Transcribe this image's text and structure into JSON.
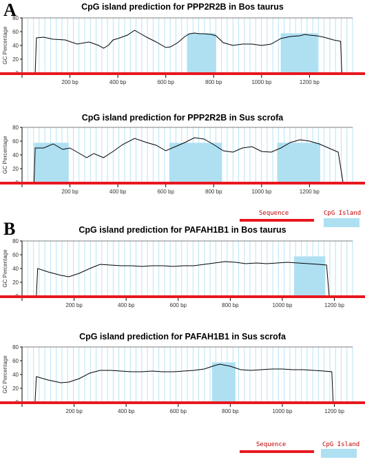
{
  "panels": [
    {
      "letter": "A"
    },
    {
      "letter": "B"
    }
  ],
  "legend": {
    "sequence_label": "Sequence",
    "island_label": "CpG Island",
    "sequence_color": "#e8171e",
    "island_color": "#aee0f2"
  },
  "colors": {
    "grid": "#b9e3f3",
    "trace": "#000000",
    "baseline": "#e8171e",
    "island": "#aee0f2",
    "axis_text": "#333333"
  },
  "chart_data": [
    {
      "type": "line",
      "title": "CpG island prediction for PPP2R2B in Bos taurus",
      "ylabel": "GC Percentage",
      "xlim": [
        0,
        1380
      ],
      "ylim": [
        0,
        80
      ],
      "yticks": [
        0,
        20,
        40,
        60,
        80
      ],
      "xticks": [
        200,
        400,
        600,
        800,
        1000,
        1200
      ],
      "xtick_labels": [
        "200  bp",
        "400  bp",
        "600  bp",
        "800  bp",
        "1000  bp",
        "1200  bp"
      ],
      "seq_start": 55,
      "seq_end": 1335,
      "islands": [
        [
          690,
          810
        ],
        [
          1080,
          1235
        ]
      ],
      "x": [
        55,
        60,
        90,
        130,
        180,
        230,
        280,
        320,
        340,
        360,
        380,
        400,
        440,
        470,
        490,
        520,
        560,
        600,
        620,
        650,
        680,
        700,
        720,
        740,
        760,
        790,
        810,
        840,
        880,
        920,
        960,
        1000,
        1040,
        1080,
        1120,
        1160,
        1180,
        1200,
        1230,
        1260,
        1300,
        1330,
        1335
      ],
      "y": [
        0,
        51,
        52,
        49,
        48,
        42,
        45,
        40,
        36,
        40,
        48,
        50,
        55,
        62,
        58,
        52,
        45,
        37,
        38,
        44,
        53,
        57,
        58,
        57,
        57,
        56,
        54,
        44,
        40,
        42,
        42,
        40,
        42,
        50,
        53,
        54,
        56,
        55,
        54,
        52,
        48,
        46,
        0
      ]
    },
    {
      "type": "line",
      "title": "CpG island prediction for PPP2R2B in Sus scrofa",
      "ylabel": "GC Percentage",
      "xlim": [
        0,
        1380
      ],
      "ylim": [
        0,
        80
      ],
      "yticks": [
        0,
        20,
        40,
        60,
        80
      ],
      "xticks": [
        200,
        400,
        600,
        800,
        1000,
        1200
      ],
      "xtick_labels": [
        "200  bp",
        "400  bp",
        "600  bp",
        "800  bp",
        "1000  bp",
        "1200  bp"
      ],
      "seq_start": 50,
      "seq_end": 1340,
      "islands": [
        [
          50,
          195
        ],
        [
          615,
          835
        ],
        [
          1065,
          1245
        ]
      ],
      "x": [
        50,
        55,
        90,
        130,
        170,
        200,
        240,
        270,
        300,
        340,
        380,
        420,
        470,
        520,
        560,
        600,
        640,
        680,
        720,
        760,
        800,
        840,
        880,
        920,
        960,
        1000,
        1040,
        1080,
        1120,
        1160,
        1200,
        1240,
        1280,
        1320,
        1340
      ],
      "y": [
        0,
        50,
        50,
        56,
        48,
        50,
        42,
        36,
        42,
        36,
        45,
        55,
        64,
        58,
        54,
        46,
        52,
        58,
        65,
        63,
        55,
        46,
        44,
        50,
        52,
        45,
        44,
        50,
        58,
        62,
        60,
        56,
        50,
        44,
        0
      ]
    },
    {
      "type": "line",
      "title": "CpG island prediction for PAFAH1B1 in Bos taurus",
      "ylabel": "GC Percentage",
      "xlim": [
        0,
        1270
      ],
      "ylim": [
        0,
        80
      ],
      "yticks": [
        0,
        20,
        40,
        60,
        80
      ],
      "xticks": [
        200,
        400,
        600,
        800,
        1000,
        1200
      ],
      "xtick_labels": [
        "200  bp",
        "400  bp",
        "600  bp",
        "800  bp",
        "1000  bp",
        "1200  bp"
      ],
      "seq_start": 55,
      "seq_end": 1180,
      "islands": [
        [
          1045,
          1165
        ]
      ],
      "x": [
        55,
        60,
        100,
        150,
        180,
        220,
        260,
        300,
        340,
        380,
        420,
        460,
        500,
        540,
        580,
        620,
        660,
        700,
        740,
        780,
        820,
        860,
        900,
        940,
        980,
        1020,
        1060,
        1100,
        1140,
        1170,
        1180
      ],
      "y": [
        0,
        40,
        35,
        30,
        28,
        33,
        40,
        46,
        45,
        44,
        44,
        43,
        44,
        44,
        43,
        44,
        44,
        46,
        48,
        50,
        49,
        47,
        48,
        47,
        48,
        49,
        48,
        47,
        46,
        45,
        0
      ]
    },
    {
      "type": "line",
      "title": "CpG island prediction for PAFAH1B1 in Sus scrofa",
      "ylabel": "GC Percentage",
      "xlim": [
        0,
        1270
      ],
      "ylim": [
        0,
        80
      ],
      "yticks": [
        0,
        20,
        40,
        60,
        80
      ],
      "xticks": [
        200,
        400,
        600,
        800,
        1000,
        1200
      ],
      "xtick_labels": [
        "200  bp",
        "400  bp",
        "600  bp",
        "800  bp",
        "1000  bp",
        "1200  bp"
      ],
      "seq_start": 50,
      "seq_end": 1195,
      "islands": [
        [
          730,
          820
        ]
      ],
      "x": [
        50,
        55,
        100,
        150,
        180,
        220,
        260,
        300,
        340,
        380,
        420,
        460,
        500,
        540,
        580,
        620,
        660,
        700,
        740,
        760,
        800,
        840,
        880,
        920,
        960,
        1000,
        1040,
        1080,
        1120,
        1160,
        1190,
        1195
      ],
      "y": [
        0,
        37,
        32,
        28,
        29,
        34,
        42,
        46,
        46,
        45,
        44,
        44,
        45,
        44,
        44,
        45,
        46,
        48,
        53,
        55,
        52,
        47,
        46,
        47,
        48,
        48,
        47,
        47,
        46,
        45,
        44,
        0
      ]
    }
  ]
}
